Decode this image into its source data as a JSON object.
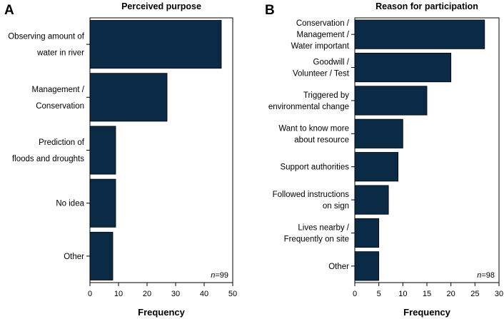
{
  "chart_data": [
    {
      "type": "bar",
      "orientation": "horizontal",
      "panel": "A",
      "title": "Perceived purpose",
      "xlabel": "Frequency",
      "ylabel": "",
      "xlim": [
        0,
        50
      ],
      "xticks": [
        0,
        10,
        20,
        30,
        40,
        50
      ],
      "categories": [
        [
          "Observing amount of",
          "water in river"
        ],
        [
          "Management /",
          "Conservation"
        ],
        [
          "Prediction of",
          "floods and droughts"
        ],
        [
          "No idea"
        ],
        [
          "Other"
        ]
      ],
      "values": [
        46,
        27,
        9,
        9,
        8
      ],
      "n_label": {
        "italic": "n",
        "rest": "=99"
      },
      "grid": false
    },
    {
      "type": "bar",
      "orientation": "horizontal",
      "panel": "B",
      "title": "Reason for participation",
      "xlabel": "Frequency",
      "ylabel": "",
      "xlim": [
        0,
        30
      ],
      "xticks": [
        0,
        5,
        10,
        15,
        20,
        25,
        30
      ],
      "categories": [
        [
          "Conservation /",
          "Management /",
          "Water important"
        ],
        [
          "Goodwill /",
          "Volunteer / Test"
        ],
        [
          "Triggered by",
          "environmental change"
        ],
        [
          "Want to know more",
          "about resource"
        ],
        [
          "Support authorities"
        ],
        [
          "Followed instructions",
          "on sign"
        ],
        [
          "Lives nearby /",
          "Frequently on site"
        ],
        [
          "Other"
        ]
      ],
      "values": [
        27,
        20,
        15,
        10,
        9,
        7,
        5,
        5
      ],
      "n_label": {
        "italic": "n",
        "rest": "=98"
      },
      "grid": false
    }
  ],
  "colors": {
    "bar": "#0b2a45",
    "axis": "#000000",
    "background": "#ffffff"
  }
}
